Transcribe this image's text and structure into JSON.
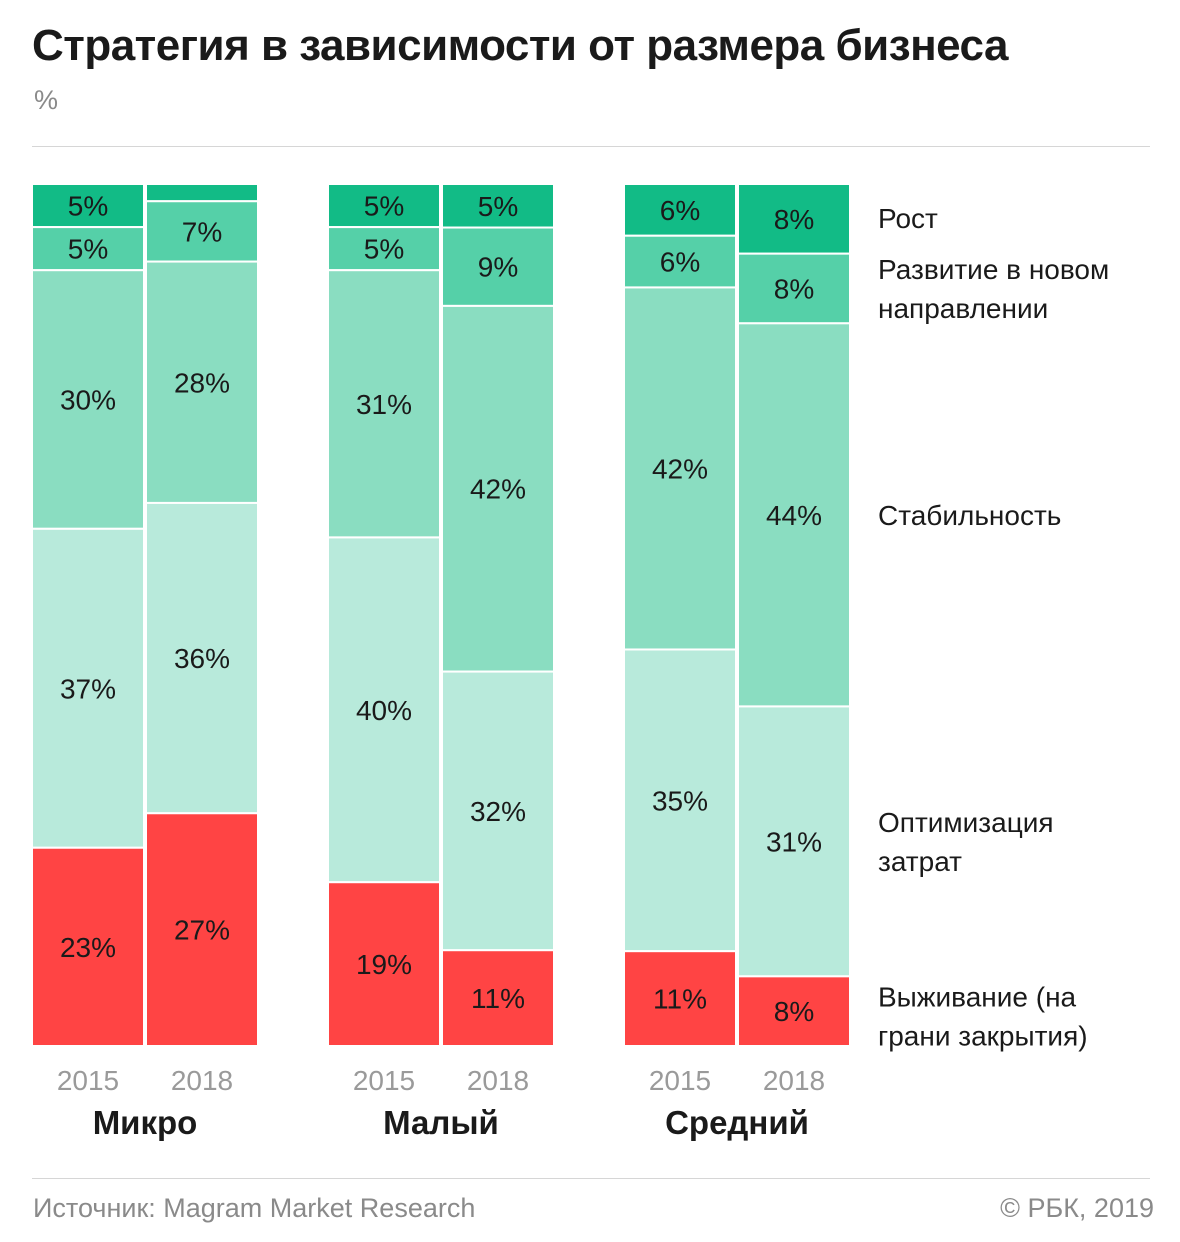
{
  "title": "Стратегия в зависимости от размера бизнеса",
  "subtitle": "%",
  "source": "Источник: Magram Market Research",
  "copyright": "© РБК, 2019",
  "colors": {
    "Рост": "#12bb86",
    "Развитие в новом направлении": "#55d0a8",
    "Стабильность": "#8addc1",
    "Оптимизация затрат": "#b8eadb",
    "Выживание (на грани закрытия)": "#ff4444"
  },
  "chart_data": {
    "type": "bar",
    "stacked": true,
    "normalized": true,
    "unit": "%",
    "x_labels": [
      "2015",
      "2018"
    ],
    "legend_placement": "right",
    "series_order_top_to_bottom": [
      "Рост",
      "Развитие в новом направлении",
      "Стабильность",
      "Оптимизация затрат",
      "Выживание (на грани закрытия)"
    ],
    "legend_lines": [
      [
        "Рост"
      ],
      [
        "Развитие в новом",
        "направлении"
      ],
      [
        "Стабильность"
      ],
      [
        "Оптимизация",
        "затрат"
      ],
      [
        "Выживание (на",
        "грани закрытия)"
      ]
    ],
    "groups": [
      {
        "name": "Микро",
        "bars": [
          {
            "year": "2015",
            "values": [
              5,
              5,
              30,
              37,
              23
            ],
            "labels": [
              "5%",
              "5%",
              "30%",
              "37%",
              "23%"
            ]
          },
          {
            "year": "2018",
            "values": [
              2,
              7,
              28,
              36,
              27
            ],
            "labels": [
              "",
              "7%",
              "28%",
              "36%",
              "27%"
            ]
          }
        ]
      },
      {
        "name": "Малый",
        "bars": [
          {
            "year": "2015",
            "values": [
              5,
              5,
              31,
              40,
              19
            ],
            "labels": [
              "5%",
              "5%",
              "31%",
              "40%",
              "19%"
            ]
          },
          {
            "year": "2018",
            "values": [
              5,
              9,
              42,
              32,
              11
            ],
            "labels": [
              "5%",
              "9%",
              "42%",
              "32%",
              "11%"
            ]
          }
        ]
      },
      {
        "name": "Средний",
        "bars": [
          {
            "year": "2015",
            "values": [
              6,
              6,
              42,
              35,
              11
            ],
            "labels": [
              "6%",
              "6%",
              "42%",
              "35%",
              "11%"
            ]
          },
          {
            "year": "2018",
            "values": [
              8,
              8,
              44,
              31,
              8
            ],
            "labels": [
              "8%",
              "8%",
              "44%",
              "31%",
              "8%"
            ]
          }
        ]
      }
    ]
  }
}
